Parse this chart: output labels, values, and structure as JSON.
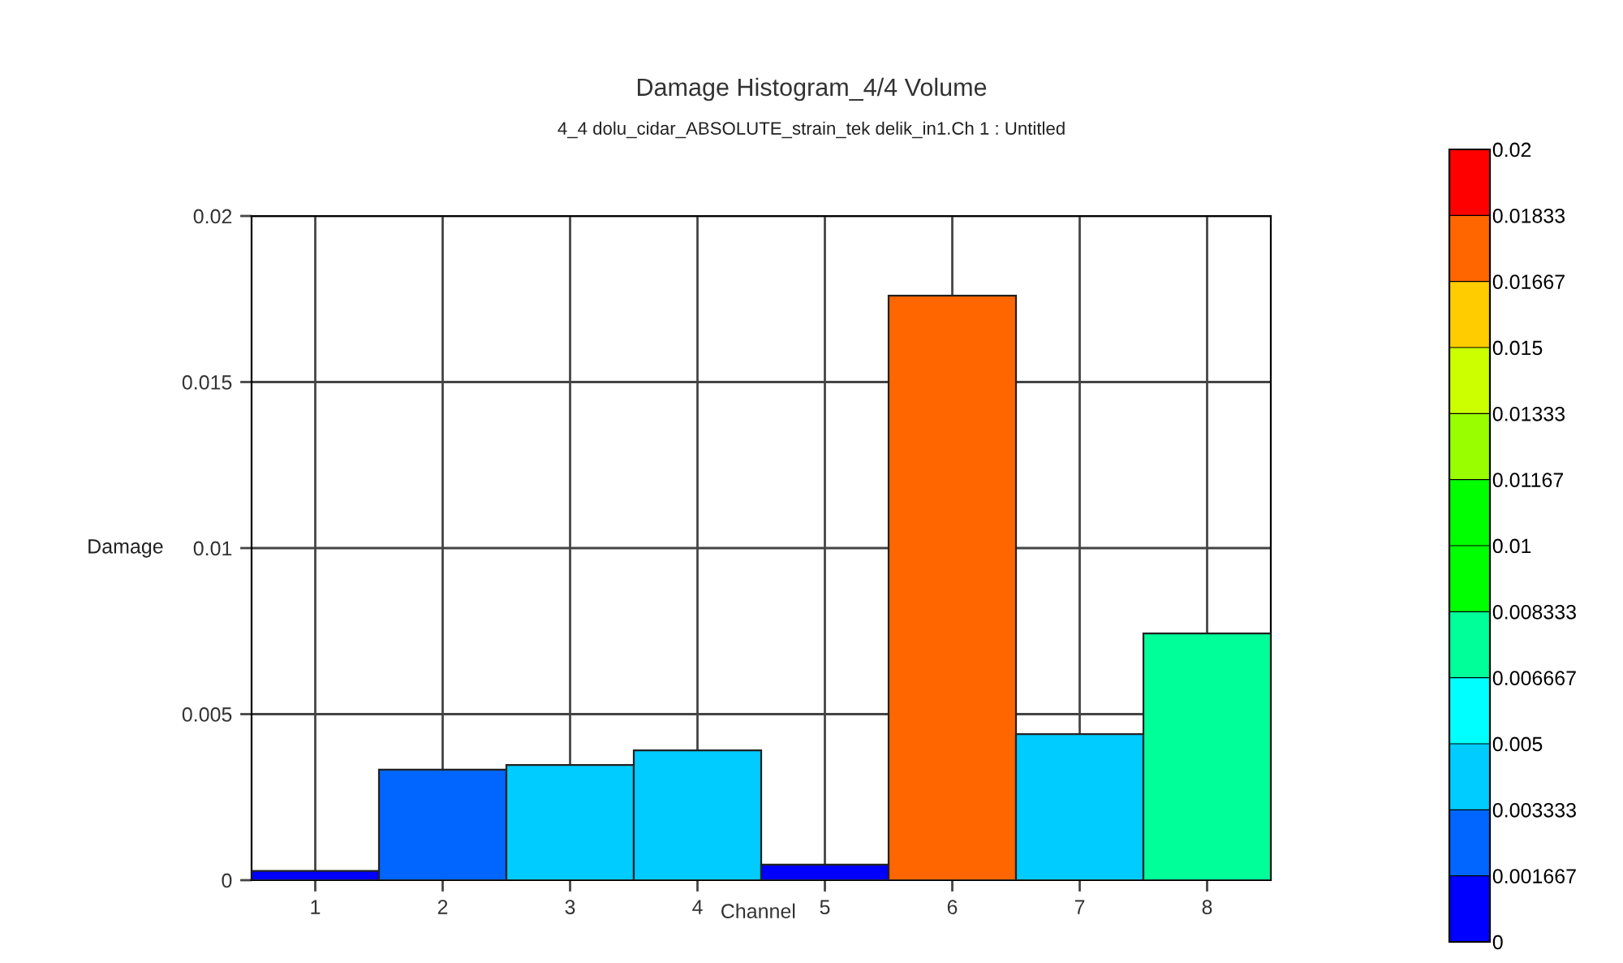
{
  "chart_data": {
    "type": "bar",
    "title": "Damage Histogram_4/4 Volume",
    "subtitle": "4_4 dolu_cidar_ABSOLUTE_strain_tek delik_in1.Ch 1 : Untitled",
    "xlabel": "Channel",
    "ylabel": "Damage",
    "categories": [
      "1",
      "2",
      "3",
      "4",
      "5",
      "6",
      "7",
      "8"
    ],
    "values": [
      0.00028,
      0.00333,
      0.00347,
      0.00391,
      0.00047,
      0.0176,
      0.0044,
      0.00743
    ],
    "colors": [
      "#0000ff",
      "#0066ff",
      "#00ccff",
      "#00ccff",
      "#0000ff",
      "#ff6600",
      "#00ccff",
      "#00ff99"
    ],
    "ylim": [
      0,
      0.02
    ],
    "yticks": [
      0,
      0.005,
      0.01,
      0.015,
      0.02
    ],
    "clim": [
      0,
      0.02
    ],
    "cticks": [
      0,
      0.001667,
      0.003333,
      0.005,
      0.006667,
      0.008333,
      0.01,
      0.01167,
      0.01333,
      0.015,
      0.01667,
      0.01833,
      0.02
    ],
    "grid": true,
    "legend": false
  }
}
